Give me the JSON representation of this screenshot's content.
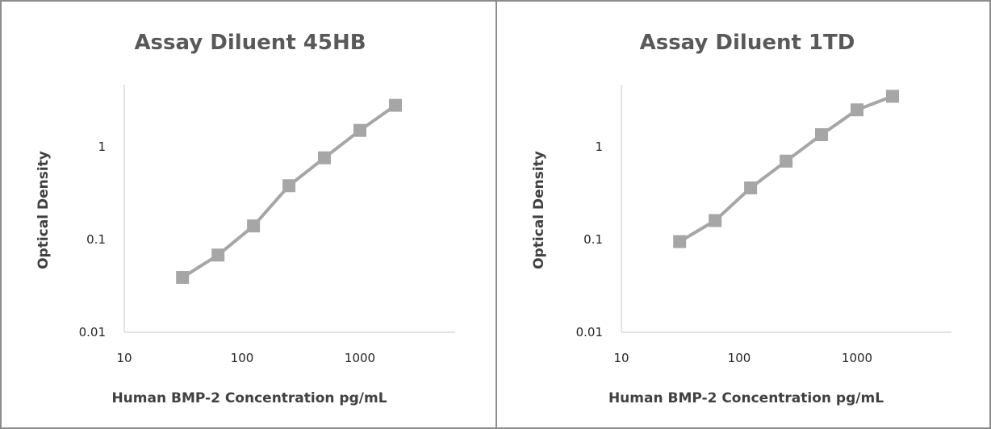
{
  "chart_data": [
    {
      "type": "line",
      "title": "Assay Diluent 45HB",
      "xlabel": "Human BMP-2 Concentration pg/mL",
      "ylabel": "Optical Density",
      "x_scale": "log",
      "y_scale": "log",
      "xlim": [
        10,
        5000
      ],
      "ylim": [
        0.01,
        10
      ],
      "x_ticks": [
        "10",
        "100",
        "1000"
      ],
      "y_ticks": [
        "0.01",
        "0.1",
        "1"
      ],
      "grid": false,
      "series": [
        {
          "x": [
            31.25,
            62.5,
            125,
            250,
            500,
            1000,
            2000
          ],
          "y": [
            0.039,
            0.068,
            0.14,
            0.38,
            0.76,
            1.5,
            2.8
          ],
          "color": "#a6a6a6",
          "marker": "square"
        }
      ]
    },
    {
      "type": "line",
      "title": "Assay Diluent 1TD",
      "xlabel": "Human BMP-2 Concentration pg/mL",
      "ylabel": "Optical Density",
      "x_scale": "log",
      "y_scale": "log",
      "xlim": [
        10,
        5000
      ],
      "ylim": [
        0.01,
        10
      ],
      "x_ticks": [
        "10",
        "100",
        "1000"
      ],
      "y_ticks": [
        "0.01",
        "0.1",
        "1"
      ],
      "grid": false,
      "series": [
        {
          "x": [
            31.25,
            62.5,
            125,
            250,
            500,
            1000,
            2000
          ],
          "y": [
            0.095,
            0.16,
            0.36,
            0.7,
            1.35,
            2.5,
            3.5
          ],
          "color": "#a6a6a6",
          "marker": "square"
        }
      ]
    }
  ]
}
